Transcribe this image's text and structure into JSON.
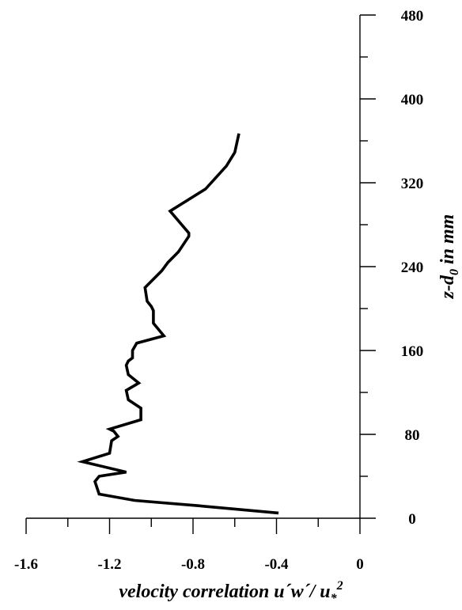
{
  "chart_data": {
    "type": "line",
    "title": "",
    "xlabel": {
      "main": "velocity correlation u´w´/ u",
      "sub": "*",
      "sup": "2"
    },
    "ylabel": {
      "main": "z-d",
      "sub": "0",
      "rest": " in mm"
    },
    "xlim": [
      -1.6,
      0
    ],
    "ylim": [
      0,
      480
    ],
    "x_ticks": [
      -1.6,
      -1.2,
      -0.8,
      -0.4,
      0
    ],
    "x_tick_labels": [
      "-1.6",
      "-1.2",
      "-0.8",
      "-0.4",
      "0"
    ],
    "y_ticks": [
      0,
      80,
      160,
      240,
      320,
      400,
      480
    ],
    "y_tick_labels": [
      "0",
      "80",
      "160",
      "240",
      "320",
      "400",
      "480"
    ],
    "y_axis_side": "right",
    "grid": false,
    "series": [
      {
        "color": "#000000",
        "points": [
          [
            -0.39,
            5
          ],
          [
            -0.78,
            12
          ],
          [
            -1.08,
            17
          ],
          [
            -1.25,
            23
          ],
          [
            -1.27,
            35
          ],
          [
            -1.25,
            40
          ],
          [
            -1.12,
            44
          ],
          [
            -1.33,
            54
          ],
          [
            -1.2,
            62
          ],
          [
            -1.19,
            74
          ],
          [
            -1.16,
            78
          ],
          [
            -1.18,
            83
          ],
          [
            -1.2,
            85
          ],
          [
            -1.05,
            94
          ],
          [
            -1.05,
            105
          ],
          [
            -1.11,
            113
          ],
          [
            -1.12,
            122
          ],
          [
            -1.06,
            129
          ],
          [
            -1.11,
            137
          ],
          [
            -1.12,
            146
          ],
          [
            -1.11,
            150
          ],
          [
            -1.09,
            153
          ],
          [
            -1.09,
            160
          ],
          [
            -1.07,
            167
          ],
          [
            -0.94,
            174
          ],
          [
            -0.99,
            186
          ],
          [
            -0.99,
            198
          ],
          [
            -1.0,
            202
          ],
          [
            -1.02,
            207
          ],
          [
            -1.03,
            220
          ],
          [
            -0.95,
            236
          ],
          [
            -0.92,
            244
          ],
          [
            -0.87,
            254
          ],
          [
            -0.82,
            269
          ],
          [
            -0.82,
            272
          ],
          [
            -0.91,
            293
          ],
          [
            -0.74,
            314
          ],
          [
            -0.64,
            336
          ],
          [
            -0.6,
            349
          ],
          [
            -0.58,
            367
          ]
        ]
      }
    ]
  }
}
